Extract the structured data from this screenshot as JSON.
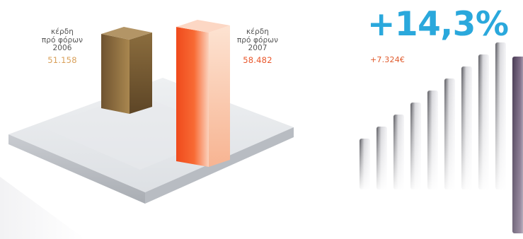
{
  "chart_data": [
    {
      "type": "bar",
      "style": "3d-columns",
      "categories": [
        "2006",
        "2007"
      ],
      "labels": [
        {
          "lines": [
            "κέρδη",
            "πρό φόρων",
            "2006"
          ],
          "value_text": "51.158"
        },
        {
          "lines": [
            "κέρδη",
            "πρό φόρων",
            "2007"
          ],
          "value_text": "58.482"
        }
      ],
      "values": [
        51158,
        58482
      ],
      "colors": [
        "#8a6a3a",
        "#f0602a"
      ],
      "title": "",
      "xlabel": "",
      "ylabel": "",
      "grid": false,
      "legend": "none"
    },
    {
      "type": "bar",
      "style": "decorative-growth-columns",
      "headline": "+14,3%",
      "subheadline": "+7.324€",
      "headline_color": "#2aa8dc",
      "subheadline_color": "#e05a2c",
      "values": [
        1,
        2,
        3,
        4,
        5,
        6,
        7,
        8,
        9,
        10
      ],
      "grid": false,
      "legend": "none"
    }
  ]
}
